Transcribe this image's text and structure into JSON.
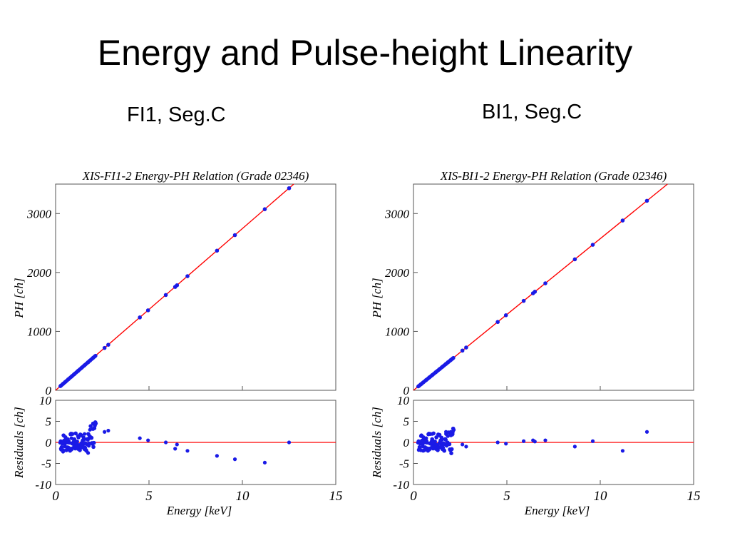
{
  "slide": {
    "title": "Energy and Pulse-height Linearity",
    "subtitle_left": "FI1, Seg.C",
    "subtitle_right": "BI1, Seg.C"
  },
  "colors": {
    "fit_line": "#ff0000",
    "points": "#1a1ae6",
    "zero_line": "#ff0000",
    "axes": "#000000"
  },
  "chart_data": [
    {
      "type": "scatter",
      "title": "XIS-FI1-2  Energy-PH Relation  (Grade 02346)",
      "xlabel": "Energy [keV]",
      "ylabel": "PH [ch]",
      "residual_ylabel": "Residuals [ch]",
      "xlim": [
        0,
        15
      ],
      "ylim": [
        0,
        3500
      ],
      "residual_ylim": [
        -10,
        10
      ],
      "xticks": [
        "0",
        "5",
        "10",
        "15"
      ],
      "yticks": [
        "0",
        "1000",
        "2000",
        "3000"
      ],
      "residual_yticks": [
        "10",
        "5",
        "0",
        "-5",
        "-10"
      ],
      "fit_line": {
        "x": [
          0,
          12.75
        ],
        "y": [
          0,
          3500
        ]
      },
      "grid": false,
      "series": [
        {
          "x": [
            0.28,
            0.4,
            0.52,
            0.68,
            0.85,
            1.0,
            1.2,
            1.4,
            1.55,
            1.74,
            1.84,
            2.0,
            2.1,
            2.62,
            2.82,
            4.51,
            4.95,
            5.9,
            6.4,
            6.5,
            7.06,
            8.64,
            9.6,
            11.2,
            12.5
          ],
          "y": [
            78,
            110,
            143,
            187,
            233,
            274,
            329,
            384,
            425,
            477,
            505,
            549,
            576,
            719,
            773,
            1237,
            1358,
            1618,
            1755,
            1783,
            1937,
            2370,
            2634,
            3074,
            3430
          ]
        }
      ],
      "residuals": {
        "x": [
          0.28,
          0.4,
          0.52,
          0.68,
          0.85,
          1.0,
          1.2,
          1.4,
          1.55,
          1.74,
          1.84,
          2.0,
          2.1,
          2.62,
          2.82,
          4.51,
          4.95,
          5.9,
          6.4,
          6.5,
          7.06,
          8.64,
          9.6,
          11.2,
          12.5
        ],
        "y": [
          -1.5,
          -2.2,
          0.5,
          -1.2,
          1.0,
          -0.8,
          1.5,
          -1.0,
          2.0,
          -2.5,
          3.0,
          4.5,
          4.0,
          2.5,
          2.8,
          1.0,
          0.5,
          0.0,
          -1.5,
          -0.5,
          -2.0,
          -3.2,
          -4.0,
          -4.8,
          0.0
        ]
      }
    },
    {
      "type": "scatter",
      "title": "XIS-BI1-2  Energy-PH Relation  (Grade 02346)",
      "xlabel": "Energy [keV]",
      "ylabel": "PH [ch]",
      "residual_ylabel": "Residuals [ch]",
      "xlim": [
        0,
        15
      ],
      "ylim": [
        0,
        3500
      ],
      "residual_ylim": [
        -10,
        10
      ],
      "xticks": [
        "0",
        "5",
        "10",
        "15"
      ],
      "yticks": [
        "0",
        "1000",
        "2000",
        "3000"
      ],
      "residual_yticks": [
        "10",
        "5",
        "0",
        "-5",
        "-10"
      ],
      "fit_line": {
        "x": [
          0,
          13.6
        ],
        "y": [
          0,
          3500
        ]
      },
      "grid": false,
      "series": [
        {
          "x": [
            0.28,
            0.4,
            0.52,
            0.68,
            0.85,
            1.0,
            1.2,
            1.4,
            1.55,
            1.74,
            1.84,
            2.0,
            2.1,
            2.62,
            2.82,
            4.51,
            4.95,
            5.9,
            6.4,
            6.5,
            7.06,
            8.64,
            9.6,
            11.2,
            12.5
          ],
          "y": [
            72,
            103,
            134,
            175,
            219,
            257,
            309,
            360,
            399,
            448,
            474,
            515,
            540,
            674,
            726,
            1160,
            1274,
            1518,
            1647,
            1673,
            1816,
            2223,
            2470,
            2882,
            3217
          ]
        }
      ],
      "residuals": {
        "x": [
          0.28,
          0.4,
          0.52,
          0.68,
          0.85,
          1.0,
          1.2,
          1.4,
          1.55,
          1.74,
          1.84,
          2.0,
          2.1,
          2.62,
          2.82,
          4.51,
          4.95,
          5.9,
          6.4,
          6.5,
          7.06,
          8.64,
          9.6,
          11.2,
          12.5
        ],
        "y": [
          -1.8,
          1.5,
          -2.0,
          1.0,
          -1.5,
          2.0,
          -0.5,
          1.8,
          -1.0,
          2.5,
          1.5,
          2.5,
          2.0,
          -0.5,
          -1.0,
          0.0,
          -0.3,
          0.3,
          0.5,
          0.2,
          0.5,
          -1.0,
          0.3,
          -2.0,
          2.5
        ]
      }
    }
  ]
}
